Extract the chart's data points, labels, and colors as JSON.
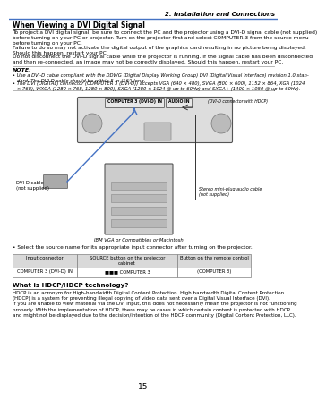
{
  "title_section": "2. Installation and Connections",
  "section_title": "When Viewing a DVI Digital Signal",
  "body_text_1": "To project a DVI digital signal, be sure to connect the PC and the projector using a DVI-D signal cable (not supplied)\nbefore turning on your PC or projector. Turn on the projector first and select COMPUTER 3 from the source menu\nbefore turning on your PC.",
  "body_text_2": "Failure to do so may not activate the digital output of the graphics card resulting in no picture being displayed.\nShould this happen, restart your PC.",
  "body_text_3": "Do not disconnect the DVI-D signal cable while the projector is running. If the signal cable has been disconnected\nand then re-connected, an image may not be correctly displayed. Should this happen, restart your PC.",
  "note_label": "NOTE:",
  "note_1": "• Use a DVI-D cable compliant with the DDWG (Digital Display Working Group) DVI (Digital Visual Interface) revision 1.0 stan-\n   dard. The DVI-D cable should be within 5 m (16’) long.",
  "note_2": "• The DVI (DIGITAL) connector (COMPUTER 3 (DVI-D)) accepts VGA (640 × 480), SVGA (800 × 600), 1152 × 864, XGA (1024\n   × 768), WXGA (1280 × 768, 1280 × 800), SXGA (1280 × 1024 @ up to 60Hz) and SXGA+ (1400 × 1050 @ up to 60Hz).",
  "diagram_label_computer3": "COMPUTER 3 (DVI-D) IN",
  "diagram_label_audioin": "AUDIO IN",
  "diagram_label_hdcp": "(DVI-D connector with HDCP)",
  "diagram_label_dvid_cable": "DVI-D cable\n(not supplied)",
  "diagram_label_audio_cable": "Stereo mini-plug audio cable\n(not supplied)",
  "diagram_label_ibm": "IBM VGA or Compatibles or Macintosh",
  "bullet_text": "• Select the source name for its appropriate input connector after turning on the projector.",
  "table_header_1": "Input connector",
  "table_header_2": "SOURCE button on the projector\ncabinet",
  "table_header_3": "Button on the remote control",
  "table_row_1_1": "COMPUTER 3 (DVI-D) IN",
  "table_row_1_2": "■■■ COMPUTER 3",
  "table_row_1_3": "(COMPUTER 3)",
  "section2_title": "What is HDCP/HDCP technology?",
  "hdcp_text": "HDCP is an acronym for High-bandwidth Digital Content Protection. High bandwidth Digital Content Protection\n(HDCP) is a system for preventing illegal copying of video data sent over a Digital Visual Interface (DVI).\nIf you are unable to view material via the DVI input, this does not necessarily mean the projector is not functioning\nproperly. With the implementation of HDCP, there may be cases in which certain content is protected with HDCP\nand might not be displayed due to the decision/intention of the HDCP community (Digital Content Protection, LLC).",
  "page_number": "15",
  "bg_color": "#ffffff",
  "text_color": "#000000",
  "header_line_color": "#4472c4",
  "table_header_bg": "#d9d9d9",
  "table_border_color": "#808080",
  "note_line_color": "#aaaaaa",
  "projector_fill": "#dddddd",
  "projector_edge": "#555555",
  "pc_fill": "#cccccc",
  "pc_edge": "#555555",
  "cable_color": "#4472c4",
  "speaker_fill": "#bbbbbb"
}
